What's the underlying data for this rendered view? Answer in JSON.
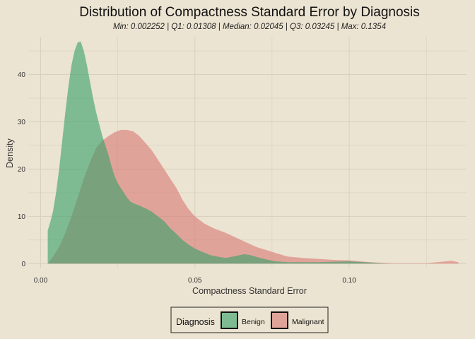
{
  "chart_data": {
    "type": "area",
    "title": "Distribution of Compactness Standard Error by Diagnosis",
    "subtitle": "Min: 0.002252 | Q1: 0.01308 | Median: 0.02045 | Q3: 0.03245 | Max: 0.1354",
    "xlabel": "Compactness Standard Error",
    "ylabel": "Density",
    "xlim": [
      -0.004,
      0.138
    ],
    "ylim": [
      -1,
      48
    ],
    "x_ticks": [
      0.0,
      0.05,
      0.1
    ],
    "x_tick_labels": [
      "0.00",
      "0.05",
      "0.10"
    ],
    "y_ticks": [
      0,
      10,
      20,
      30,
      40
    ],
    "y_tick_labels": [
      "0",
      "10",
      "20",
      "30",
      "40"
    ],
    "grid": true,
    "legend": {
      "title": "Diagnosis",
      "position": "bottom"
    },
    "series": [
      {
        "name": "Benign",
        "color": "#3aa26a",
        "x": [
          0.0023,
          0.003,
          0.004,
          0.005,
          0.006,
          0.007,
          0.008,
          0.009,
          0.01,
          0.011,
          0.012,
          0.013,
          0.014,
          0.015,
          0.016,
          0.017,
          0.018,
          0.019,
          0.02,
          0.021,
          0.022,
          0.023,
          0.024,
          0.025,
          0.026,
          0.027,
          0.028,
          0.029,
          0.03,
          0.032,
          0.034,
          0.036,
          0.038,
          0.04,
          0.042,
          0.044,
          0.046,
          0.048,
          0.05,
          0.052,
          0.055,
          0.058,
          0.06,
          0.063,
          0.066,
          0.068,
          0.07,
          0.073,
          0.076,
          0.08,
          0.085,
          0.09,
          0.095,
          0.1,
          0.105,
          0.11,
          0.113
        ],
        "y": [
          7.0,
          8.5,
          11.0,
          15.0,
          20.0,
          26.0,
          32.0,
          37.5,
          42.0,
          45.0,
          46.8,
          47.0,
          45.0,
          42.0,
          38.5,
          35.0,
          32.0,
          29.5,
          27.0,
          25.0,
          23.0,
          20.5,
          18.5,
          17.0,
          16.0,
          15.0,
          14.0,
          13.2,
          12.8,
          12.3,
          11.7,
          11.0,
          10.0,
          9.0,
          7.5,
          6.3,
          5.0,
          4.0,
          3.2,
          2.6,
          1.8,
          1.4,
          1.2,
          1.6,
          2.0,
          1.8,
          1.4,
          0.9,
          0.5,
          0.3,
          0.3,
          0.3,
          0.4,
          0.5,
          0.3,
          0.1,
          0.0
        ]
      },
      {
        "name": "Malignant",
        "color": "#d97a78",
        "x": [
          0.0023,
          0.004,
          0.006,
          0.008,
          0.01,
          0.012,
          0.014,
          0.016,
          0.018,
          0.02,
          0.022,
          0.024,
          0.026,
          0.028,
          0.03,
          0.032,
          0.034,
          0.036,
          0.038,
          0.04,
          0.042,
          0.044,
          0.046,
          0.048,
          0.05,
          0.053,
          0.056,
          0.06,
          0.065,
          0.07,
          0.075,
          0.08,
          0.085,
          0.09,
          0.095,
          0.1,
          0.105,
          0.11,
          0.115,
          0.12,
          0.125,
          0.13,
          0.133,
          0.1354
        ],
        "y": [
          0.0,
          1.5,
          3.5,
          6.5,
          10.0,
          14.0,
          18.0,
          21.5,
          24.5,
          26.0,
          27.0,
          27.8,
          28.3,
          28.3,
          28.0,
          27.0,
          25.5,
          24.0,
          22.0,
          20.0,
          18.0,
          16.0,
          13.5,
          11.5,
          10.0,
          8.5,
          7.5,
          6.5,
          5.0,
          3.5,
          2.5,
          1.5,
          1.2,
          1.0,
          0.8,
          0.7,
          0.4,
          0.2,
          0.1,
          0.1,
          0.1,
          0.4,
          0.6,
          0.3
        ]
      }
    ]
  }
}
